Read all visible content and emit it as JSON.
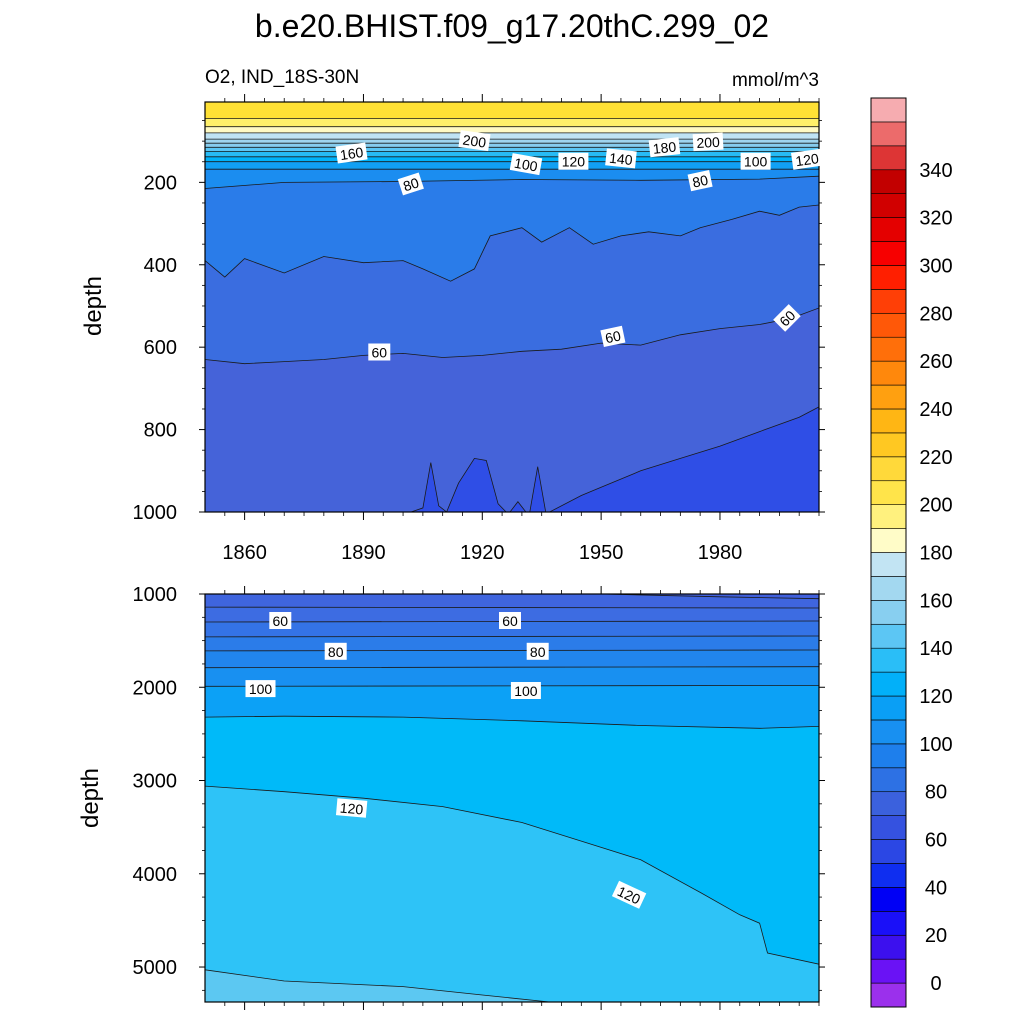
{
  "title": "b.e20.BHIST.f09_g17.20thC.299_02",
  "subtitle_left": "O2, IND_18S-30N",
  "subtitle_right": "mmol/m^3",
  "chart_data": [
    {
      "type": "contour",
      "panel": "upper",
      "x_ticks": [
        "1860",
        "1890",
        "1920",
        "1950",
        "1980"
      ],
      "x_tick_values": [
        1860,
        1890,
        1920,
        1950,
        1980
      ],
      "xlim": [
        1850,
        2005
      ],
      "y_ticks": [
        "200",
        "400",
        "600",
        "800",
        "1000"
      ],
      "y_tick_values": [
        200,
        400,
        600,
        800,
        1000
      ],
      "ylim": [
        5,
        1000
      ],
      "ylabel": "depth",
      "bands": [
        {
          "top": [
            [
              1850,
              5
            ],
            [
              2005,
              5
            ]
          ],
          "fill": "#ffe135"
        },
        {
          "top": [
            [
              1850,
              45
            ],
            [
              2005,
              45
            ]
          ],
          "fill": "#fff06a"
        },
        {
          "top": [
            [
              1850,
              65
            ],
            [
              2005,
              65
            ]
          ],
          "fill": "#fffac4"
        },
        {
          "top": [
            [
              1850,
              80
            ],
            [
              2005,
              80
            ]
          ],
          "fill": "#bfe3f4"
        },
        {
          "top": [
            [
              1850,
              95
            ],
            [
              2005,
              95
            ]
          ],
          "fill": "#9ed4ee"
        },
        {
          "top": [
            [
              1850,
              105
            ],
            [
              2005,
              105
            ]
          ],
          "fill": "#86ccee"
        },
        {
          "top": [
            [
              1850,
              115
            ],
            [
              2005,
              115
            ]
          ],
          "fill": "#5cc6f4"
        },
        {
          "top": [
            [
              1850,
              125
            ],
            [
              2005,
              125
            ]
          ],
          "fill": "#27bbf5"
        },
        {
          "top": [
            [
              1850,
              138
            ],
            [
              2005,
              138
            ]
          ],
          "fill": "#00b2f9"
        },
        {
          "top": [
            [
              1850,
              150
            ],
            [
              2005,
              150
            ]
          ],
          "fill": "#11a0f4"
        },
        {
          "top": [
            [
              1850,
              168
            ],
            [
              2005,
              168
            ]
          ],
          "fill": "#1b8df0"
        },
        {
          "top": [
            [
              1850,
              215
            ],
            [
              1870,
              200
            ],
            [
              1900,
              198
            ],
            [
              1930,
              193
            ],
            [
              1960,
              195
            ],
            [
              1990,
              192
            ],
            [
              2005,
              185
            ]
          ],
          "fill": "#2a7ce9"
        },
        {
          "top": [
            [
              1850,
              390
            ],
            [
              1855,
              430
            ],
            [
              1860,
              385
            ],
            [
              1870,
              420
            ],
            [
              1880,
              380
            ],
            [
              1890,
              395
            ],
            [
              1900,
              390
            ],
            [
              1905,
              410
            ],
            [
              1912,
              440
            ],
            [
              1918,
              410
            ],
            [
              1922,
              330
            ],
            [
              1930,
              310
            ],
            [
              1935,
              345
            ],
            [
              1942,
              310
            ],
            [
              1948,
              350
            ],
            [
              1955,
              330
            ],
            [
              1962,
              320
            ],
            [
              1970,
              330
            ],
            [
              1975,
              310
            ],
            [
              1983,
              290
            ],
            [
              1990,
              270
            ],
            [
              1995,
              280
            ],
            [
              2000,
              260
            ],
            [
              2005,
              255
            ]
          ],
          "fill": "#3a6de0"
        },
        {
          "top": [
            [
              1850,
              630
            ],
            [
              1860,
              640
            ],
            [
              1870,
              635
            ],
            [
              1880,
              630
            ],
            [
              1890,
              620
            ],
            [
              1900,
              615
            ],
            [
              1910,
              625
            ],
            [
              1920,
              620
            ],
            [
              1930,
              610
            ],
            [
              1940,
              605
            ],
            [
              1950,
              590
            ],
            [
              1960,
              595
            ],
            [
              1970,
              570
            ],
            [
              1980,
              555
            ],
            [
              1990,
              545
            ],
            [
              1998,
              530
            ],
            [
              2005,
              505
            ]
          ],
          "fill": "#4563d9"
        },
        {
          "top": [
            [
              1937,
              1000
            ],
            [
              1945,
              960
            ],
            [
              1950,
              940
            ],
            [
              1960,
              900
            ],
            [
              1970,
              870
            ],
            [
              1980,
              840
            ],
            [
              1990,
              805
            ],
            [
              2000,
              770
            ],
            [
              2005,
              745
            ]
          ],
          "fill": "#2f4ee6"
        }
      ],
      "islands": [
        [
          [
            1902,
            1000
          ],
          [
            1905,
            990
          ],
          [
            1907,
            880
          ],
          [
            1909,
            985
          ],
          [
            1911,
            1000
          ]
        ],
        [
          [
            1911,
            1000
          ],
          [
            1914,
            930
          ],
          [
            1918,
            870
          ],
          [
            1921,
            875
          ],
          [
            1924,
            980
          ],
          [
            1926,
            1000
          ]
        ],
        [
          [
            1927,
            1000
          ],
          [
            1929,
            975
          ],
          [
            1931,
            1000
          ]
        ],
        [
          [
            1932,
            1000
          ],
          [
            1934,
            890
          ],
          [
            1936,
            1000
          ]
        ]
      ],
      "contour_labels": [
        {
          "text": "200",
          "x": 1918,
          "y": 100,
          "rot": 8
        },
        {
          "text": "160",
          "x": 1887,
          "y": 130,
          "rot": -8
        },
        {
          "text": "100",
          "x": 1931,
          "y": 157,
          "rot": 10
        },
        {
          "text": "120",
          "x": 1943,
          "y": 150,
          "rot": 0
        },
        {
          "text": "140",
          "x": 1955,
          "y": 143,
          "rot": 6
        },
        {
          "text": "180",
          "x": 1966,
          "y": 116,
          "rot": -6
        },
        {
          "text": "200",
          "x": 1977,
          "y": 103,
          "rot": -3
        },
        {
          "text": "100",
          "x": 1989,
          "y": 150,
          "rot": 0
        },
        {
          "text": "120",
          "x": 2002,
          "y": 145,
          "rot": -8
        },
        {
          "text": "80",
          "x": 1902,
          "y": 205,
          "rot": -18
        },
        {
          "text": "80",
          "x": 1975,
          "y": 197,
          "rot": -12
        },
        {
          "text": "60",
          "x": 1894,
          "y": 613,
          "rot": 0
        },
        {
          "text": "60",
          "x": 1953,
          "y": 575,
          "rot": -12
        },
        {
          "text": "60",
          "x": 1997,
          "y": 530,
          "rot": -45
        }
      ]
    },
    {
      "type": "contour",
      "panel": "lower",
      "y_ticks": [
        "1000",
        "2000",
        "3000",
        "4000",
        "5000"
      ],
      "y_tick_values": [
        1000,
        2000,
        3000,
        4000,
        5000
      ],
      "xlim": [
        1850,
        2005
      ],
      "ylim": [
        1000,
        5375
      ],
      "ylabel": "depth",
      "bands": [
        {
          "top": [
            [
              1850,
              1000
            ],
            [
              2005,
              1000
            ]
          ],
          "fill": "#4060dd"
        },
        {
          "top": [
            [
              1850,
              1000
            ],
            [
              1950,
              1000
            ],
            [
              1980,
              1030
            ],
            [
              2005,
              1050
            ]
          ],
          "fill": "#3f65de"
        },
        {
          "top": [
            [
              1850,
              1140
            ],
            [
              2005,
              1150
            ]
          ],
          "fill": "#3d6ce2"
        },
        {
          "top": [
            [
              1850,
              1300
            ],
            [
              2005,
              1290
            ]
          ],
          "fill": "#3473e6"
        },
        {
          "top": [
            [
              1850,
              1460
            ],
            [
              2005,
              1450
            ]
          ],
          "fill": "#2b7ce9"
        },
        {
          "top": [
            [
              1850,
              1610
            ],
            [
              2005,
              1600
            ]
          ],
          "fill": "#2185ed"
        },
        {
          "top": [
            [
              1850,
              1790
            ],
            [
              2005,
              1780
            ]
          ],
          "fill": "#1890f1"
        },
        {
          "top": [
            [
              1850,
              1990
            ],
            [
              2005,
              1980
            ]
          ],
          "fill": "#0ca1f6"
        },
        {
          "top": [
            [
              1850,
              2320
            ],
            [
              1870,
              2310
            ],
            [
              1900,
              2320
            ],
            [
              1930,
              2360
            ],
            [
              1960,
              2410
            ],
            [
              1990,
              2440
            ],
            [
              2005,
              2420
            ]
          ],
          "fill": "#00baf9"
        },
        {
          "top": [
            [
              1850,
              3060
            ],
            [
              1870,
              3120
            ],
            [
              1890,
              3190
            ],
            [
              1910,
              3280
            ],
            [
              1930,
              3450
            ],
            [
              1945,
              3650
            ],
            [
              1960,
              3850
            ],
            [
              1975,
              4200
            ],
            [
              1985,
              4440
            ],
            [
              1990,
              4530
            ],
            [
              1992,
              4850
            ],
            [
              2005,
              4970
            ]
          ],
          "fill": "#2ec3f7"
        },
        {
          "top": [
            [
              1850,
              5030
            ],
            [
              1870,
              5150
            ],
            [
              1900,
              5210
            ],
            [
              1920,
              5300
            ],
            [
              1937,
              5375
            ],
            [
              2005,
              5375
            ]
          ],
          "fill": "#5cc8f2"
        }
      ],
      "contour_labels": [
        {
          "text": "60",
          "x": 1869,
          "y": 1290,
          "rot": 0
        },
        {
          "text": "60",
          "x": 1927,
          "y": 1290,
          "rot": 0
        },
        {
          "text": "80",
          "x": 1883,
          "y": 1620,
          "rot": 0
        },
        {
          "text": "80",
          "x": 1934,
          "y": 1620,
          "rot": 0
        },
        {
          "text": "100",
          "x": 1864,
          "y": 2020,
          "rot": 0
        },
        {
          "text": "100",
          "x": 1931,
          "y": 2040,
          "rot": 0
        },
        {
          "text": "120",
          "x": 1887,
          "y": 3300,
          "rot": 5
        },
        {
          "text": "120",
          "x": 1957,
          "y": 4230,
          "rot": 25
        }
      ]
    }
  ],
  "colorbar": {
    "tick_labels": [
      "0",
      "20",
      "40",
      "60",
      "80",
      "100",
      "120",
      "140",
      "160",
      "180",
      "200",
      "220",
      "240",
      "260",
      "280",
      "300",
      "320",
      "340"
    ],
    "colors": [
      "#9b30ec",
      "#6a12f5",
      "#3c10ee",
      "#1a10f8",
      "#0000f5",
      "#0f2ef0",
      "#2b47e4",
      "#3552e0",
      "#3b61dd",
      "#2d71e4",
      "#1e7fec",
      "#1890f1",
      "#0a9ff5",
      "#02b0f9",
      "#2abef7",
      "#5cc6f4",
      "#88cff0",
      "#a3d8f0",
      "#c2e4f3",
      "#fffcc8",
      "#fff17e",
      "#ffe44a",
      "#ffd93a",
      "#ffc822",
      "#ffb614",
      "#ffa010",
      "#ff880c",
      "#ff6f0a",
      "#ff5808",
      "#ff3f06",
      "#ff1f00",
      "#f70000",
      "#e40000",
      "#d10000",
      "#c20000",
      "#dd3535",
      "#ec6b6b",
      "#f6acb0"
    ]
  }
}
